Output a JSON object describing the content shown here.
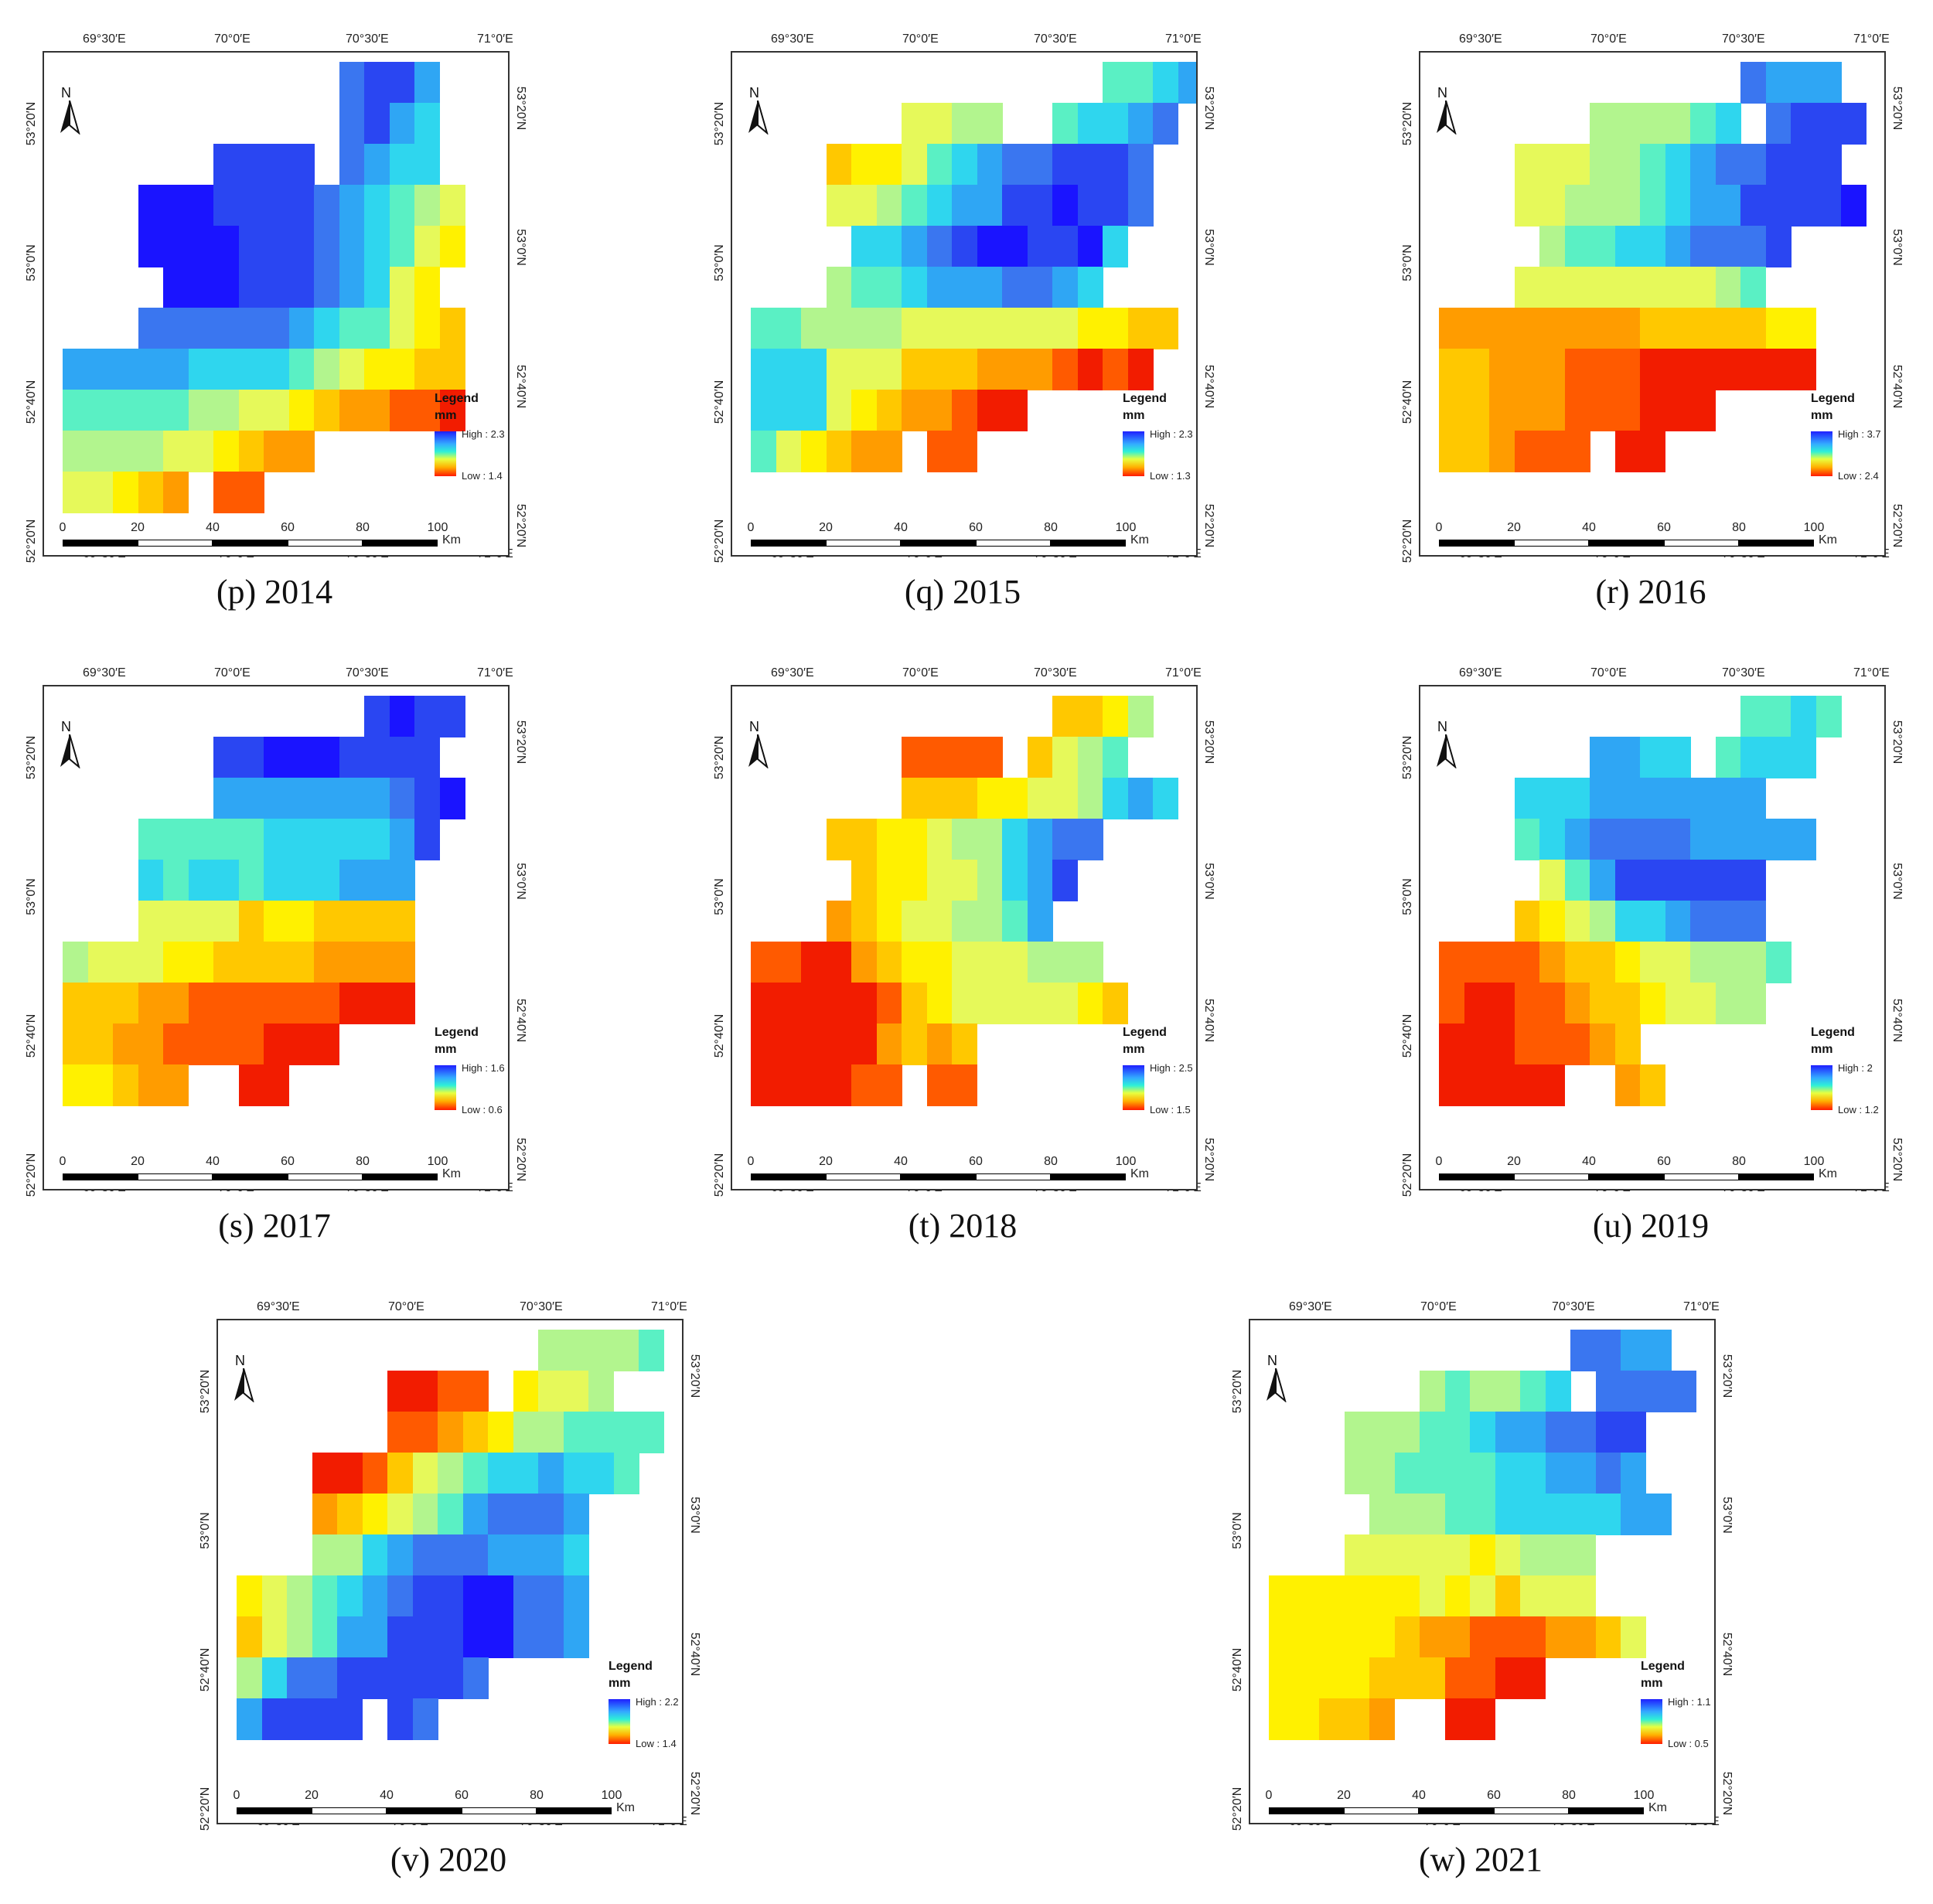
{
  "palette": [
    "#1a14ff",
    "#2a46f2",
    "#3a76f0",
    "#2fa6f4",
    "#2fd6ee",
    "#5af0c4",
    "#b2f58e",
    "#e6f95a",
    "#fff100",
    "#ffc800",
    "#ff9c00",
    "#ff5a00",
    "#f21c00"
  ],
  "ui": {
    "north": "N",
    "legend_title": "Legend",
    "legend_unit": "mm",
    "km": "Km",
    "lon_labels": [
      "69°30′E",
      "70°0′E",
      "70°30′E",
      "71°0′E"
    ],
    "lat_labels": [
      "53°20′N",
      "53°0′N",
      "52°40′N",
      "52°20′N"
    ],
    "scale_labels": [
      "0",
      "20",
      "40",
      "60",
      "80",
      "100"
    ]
  },
  "panels": [
    {
      "caption": "(p) 2014",
      "high": "High : 2.3",
      "low": "Low : 1.4",
      "grid": [
        "...........2113.",
        ".......",
        "...........2134.",
        "......",
        "......1111.2344..",
        "......",
        "...0001111234567",
        "...",
        "...0000111234578",
        "...",
        "....00011123478.",
        "...",
        "...2222223455789.",
        "...",
        "3333344445678899..",
        "...",
        "55555667789aabbc..",
        "...",
        "66667789aa........",
        "...",
        "7789a.bb.........."
      ]
    },
    {
      "caption": "(q) 2015",
      "high": "High : 2.3",
      "low": "Low : 1.3",
      "grid": [
        "..............5543",
        "....",
        "......7766..54432",
        "...",
        "...9887543221112",
        "...",
        "...7765433110112",
        "...",
        "....44321001104",
        "...",
        "...65543332234..",
        "...",
        "55666677777778899",
        "...",
        "444777999aaabcbd",
        "...",
        "444789aabcd..",
        "...",
        "5789aa.bb........"
      ]
    },
    {
      "caption": "(r) 2016",
      "high": "High : 3.7",
      "low": "Low : 2.4",
      "grid": [
        "............2333",
        "....",
        "......666654.2111",
        "...",
        "...7776654322111",
        "...",
        "...77666543311110",
        "...",
        "....6554432221",
        "...",
        "...7777777765",
        "...",
        "aaaaaaaa9999988",
        "...",
        "99aaabbbcdddddd",
        "...",
        "99aaabbbccc",
        "...",
        "99abbb.cc"
      ]
    },
    {
      "caption": "(s) 2017",
      "high": "High : 1.6",
      "low": "Low : 0.6",
      "grid": [
        "............1011",
        "....",
        "......110001111",
        "...",
        "......3333333210",
        "...",
        "...555554444431",
        "...",
        "...45445444333",
        "...",
        "...77779889999",
        "...",
        "6777889999aaaa",
        "...",
        "999aabbbbbbccc",
        "...",
        "99aabbbbccc",
        "...",
        "889aa..cc"
      ]
    },
    {
      "caption": "(t) 2018",
      "high": "High : 2.5",
      "low": "Low : 1.5",
      "grid": [
        "............9986",
        "....",
        "......bbbb.9765",
        "...",
        "......99988776434",
        "...",
        "...99887664322",
        "...",
        "....988776431",
        "...",
        "...a98776653",
        "...",
        "bbcca988777666",
        "...",
        "cddccb987777789",
        "...",
        "cddcca9a9",
        "...",
        "ccccbb.bb"
      ]
    },
    {
      "caption": "(u) 2019",
      "high": "High : 2",
      "low": "Low : 1.2",
      "grid": [
        "............5545",
        "....",
        "......3344.5444",
        "...",
        "...4443333333",
        "...",
        "...543222233333",
        "...",
        "....753111111",
        "...",
        "...9876443222",
        "...",
        "bbbba998776665",
        "...",
        "bccbba9987766",
        "...",
        "cccbbba9",
        "...",
        "dddcc..a9"
      ]
    },
    {
      "caption": "(v) 2020",
      "high": "High : 2.2",
      "low": "Low : 1.4",
      "grid": [
        "............66665",
        "....",
        "......dcbb.8776",
        "...",
        "......bba98665555",
        "...",
        "...ccb9765443445",
        "...",
        "...a9876532223",
        "...",
        "...66432223334",
        "...",
        "87654321100223",
        "...",
        "97653311100223",
        "...",
        "6422111112",
        "...",
        "31111.12"
      ]
    },
    {
      "caption": "(w) 2021",
      "high": "High : 1.1",
      "low": "Low : 0.5",
      "grid": [
        "............2233",
        "....",
        "......656654.2222",
        "...",
        "...666554332211",
        "...",
        "...665555443323",
        "...",
        "....666554444433",
        "...",
        "...7777787666",
        "...",
        "8888887879777",
        "...",
        "888889aabbbaa97",
        "...",
        "8888999bbcc",
        "...",
        "8899a..cc"
      ]
    }
  ]
}
